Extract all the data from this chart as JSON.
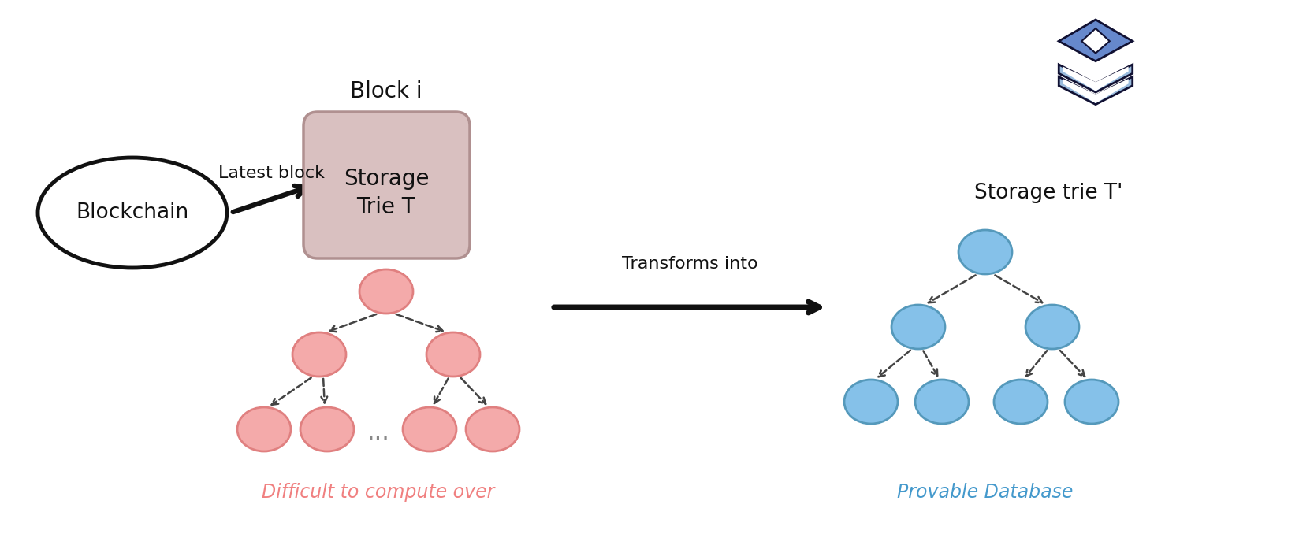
{
  "bg_color": "#ffffff",
  "title_block": "Block i",
  "blockchain_label": "Blockchain",
  "latest_block_label": "Latest block",
  "storage_trie_label": "Storage\nTrie T",
  "storage_trie_prime_label": "Storage trie T'",
  "transforms_into_label": "Transforms into",
  "difficult_label": "Difficult to compute over",
  "provable_label": "Provable Database",
  "pink_node_fill": "#F4AAAA",
  "pink_edge": "#E08080",
  "blue_node_fill": "#85C1E9",
  "blue_edge": "#5599BB",
  "box_fill": "#D9C0C0",
  "box_edge": "#B09090",
  "difficult_text_color": "#F08080",
  "provable_text_color": "#4499CC",
  "db_blue_dark": "#4466AA",
  "db_blue_mid": "#6688CC",
  "db_blue_light": "#99BBDD",
  "font": "Comic Sans MS"
}
